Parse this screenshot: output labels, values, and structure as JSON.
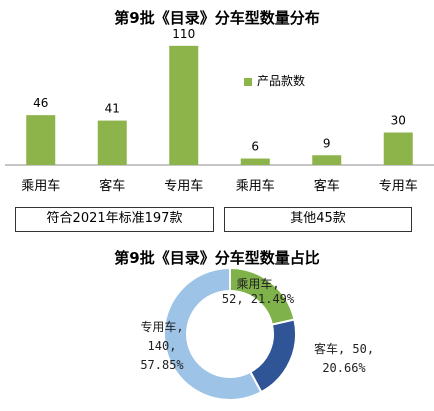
{
  "colors": {
    "bar": "#8db44b",
    "pie": [
      "#7fb24a",
      "#2f5597",
      "#9dc3e6"
    ]
  },
  "chart_data": [
    {
      "type": "bar",
      "title": "第9批《目录》分车型数量分布",
      "categories": [
        "乘用车",
        "客车",
        "专用车",
        "乘用车",
        "客车",
        "专用车"
      ],
      "series": [
        {
          "name": "产品款数",
          "values": [
            46,
            41,
            110,
            6,
            9,
            30
          ]
        }
      ],
      "groups": [
        "符合2021年标准197款",
        "其他45款"
      ],
      "ylim": [
        0,
        120
      ],
      "grid": false,
      "legend": "right"
    },
    {
      "type": "pie",
      "title": "第9批《目录》分车型数量占比",
      "labels": [
        "乘用车",
        "客车",
        "专用车"
      ],
      "values": [
        52,
        50,
        140
      ],
      "percents": [
        "21.49%",
        "20.66%",
        "57.85%"
      ],
      "data_labels": [
        [
          "乘用车,",
          "52, 21.49%"
        ],
        [
          "客车, 50,",
          "20.66%"
        ],
        [
          "专用车,",
          "140,",
          "57.85%"
        ]
      ]
    }
  ]
}
